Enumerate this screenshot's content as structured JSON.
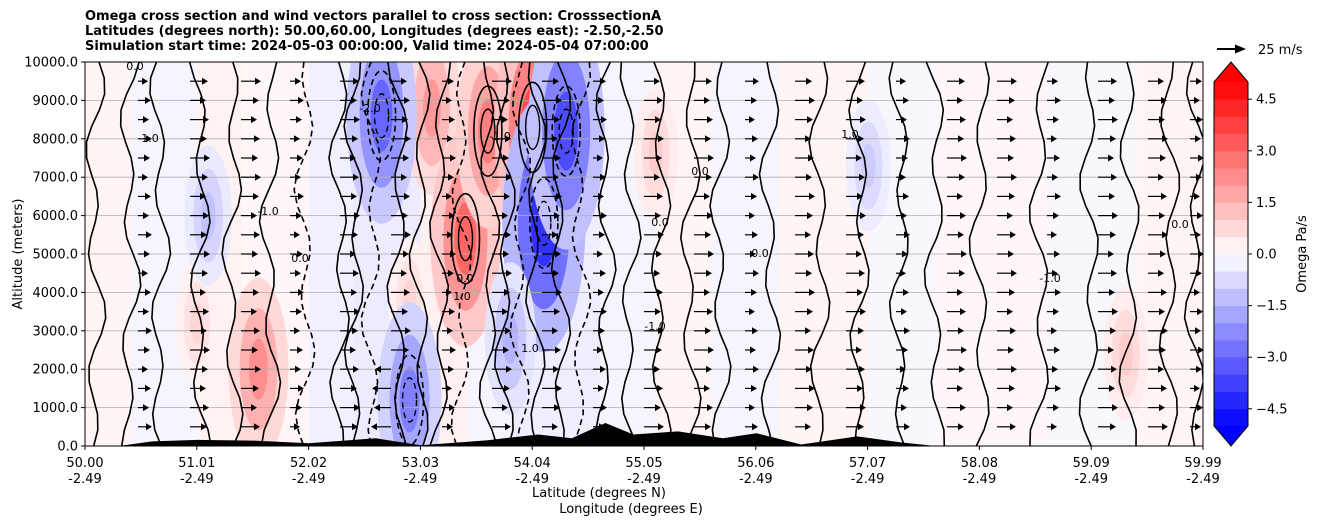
{
  "title_lines": [
    "Omega cross section and wind vectors parallel to cross section: CrosssectionA",
    "Latitudes (degrees north): 50.00,60.00, Longitudes (degrees east): -2.50,-2.50",
    "Simulation start time: 2024-05-03 00:00:00, Valid time: 2024-05-04 07:00:00"
  ],
  "chart_data": {
    "type": "heatmap",
    "title": "Omega cross section and wind vectors parallel to cross section: CrosssectionA",
    "ylabel": "Altitude (meters)",
    "xlabel_line1": "Latitude (degrees N)",
    "xlabel_line2": "Longitude (degrees E)",
    "ylim": [
      0,
      10000
    ],
    "y_ticks": [
      "0.0",
      "1000.0",
      "2000.0",
      "3000.0",
      "4000.0",
      "5000.0",
      "6000.0",
      "7000.0",
      "8000.0",
      "9000.0",
      "10000.0"
    ],
    "x_ticks": [
      {
        "lat": "50.00",
        "lon": "-2.49"
      },
      {
        "lat": "51.01",
        "lon": "-2.49"
      },
      {
        "lat": "52.02",
        "lon": "-2.49"
      },
      {
        "lat": "53.03",
        "lon": "-2.49"
      },
      {
        "lat": "54.04",
        "lon": "-2.49"
      },
      {
        "lat": "55.05",
        "lon": "-2.49"
      },
      {
        "lat": "56.06",
        "lon": "-2.49"
      },
      {
        "lat": "57.07",
        "lon": "-2.49"
      },
      {
        "lat": "58.08",
        "lon": "-2.49"
      },
      {
        "lat": "59.09",
        "lon": "-2.49"
      },
      {
        "lat": "59.99",
        "lon": "-2.49"
      }
    ],
    "x_range": [
      50.0,
      59.99
    ],
    "colorbar": {
      "label": "Omega Pa/s",
      "range": [
        -5.0,
        5.0
      ],
      "ticks": [
        "4.5",
        "3.0",
        "1.5",
        "0.0",
        "−1.5",
        "−3.0",
        "−4.5"
      ]
    },
    "vector_key": "25 m/s",
    "contour_labels": [
      "0.0",
      "1.0",
      "-1.0",
      "-2.0",
      "0.0",
      "1.0",
      "-1.0",
      "0.0",
      "1.0",
      "0.0",
      "-1.0",
      "0.0",
      "0.0",
      "1.0",
      "-1.0",
      "0.0"
    ],
    "omega_features": [
      {
        "lat": 51.55,
        "alt": 2000,
        "value": 2.2
      },
      {
        "lat": 51.0,
        "alt": 3200,
        "value": 0.8
      },
      {
        "lat": 52.9,
        "alt": 3800,
        "value": 0.8
      },
      {
        "lat": 53.1,
        "alt": 8800,
        "value": 2.0
      },
      {
        "lat": 53.4,
        "alt": 5400,
        "value": 3.0
      },
      {
        "lat": 53.6,
        "alt": 8200,
        "value": 2.5
      },
      {
        "lat": 54.0,
        "alt": 8300,
        "value": 3.5
      },
      {
        "lat": 55.1,
        "alt": 7600,
        "value": 1.0
      },
      {
        "lat": 59.3,
        "alt": 2400,
        "value": 1.0
      },
      {
        "lat": 52.65,
        "alt": 8600,
        "value": -3.0
      },
      {
        "lat": 54.1,
        "alt": 5800,
        "value": -4.0
      },
      {
        "lat": 54.3,
        "alt": 8200,
        "value": -3.5
      },
      {
        "lat": 53.8,
        "alt": 2800,
        "value": -1.5
      },
      {
        "lat": 52.9,
        "alt": 1200,
        "value": -2.5
      },
      {
        "lat": 51.1,
        "alt": 6000,
        "value": -1.2
      },
      {
        "lat": 57.0,
        "alt": 7300,
        "value": -1.0
      }
    ],
    "terrain": [
      {
        "lat": 50.3,
        "height": 0
      },
      {
        "lat": 50.6,
        "height": 120
      },
      {
        "lat": 51.0,
        "height": 160
      },
      {
        "lat": 51.5,
        "height": 140
      },
      {
        "lat": 52.0,
        "height": 70
      },
      {
        "lat": 52.6,
        "height": 200
      },
      {
        "lat": 53.0,
        "height": 20
      },
      {
        "lat": 53.6,
        "height": 150
      },
      {
        "lat": 54.05,
        "height": 300
      },
      {
        "lat": 54.35,
        "height": 200
      },
      {
        "lat": 54.65,
        "height": 600
      },
      {
        "lat": 54.9,
        "height": 300
      },
      {
        "lat": 55.3,
        "height": 380
      },
      {
        "lat": 55.7,
        "height": 200
      },
      {
        "lat": 56.0,
        "height": 330
      },
      {
        "lat": 56.4,
        "height": 40
      },
      {
        "lat": 56.9,
        "height": 250
      },
      {
        "lat": 57.3,
        "height": 90
      },
      {
        "lat": 57.6,
        "height": 0
      }
    ]
  }
}
